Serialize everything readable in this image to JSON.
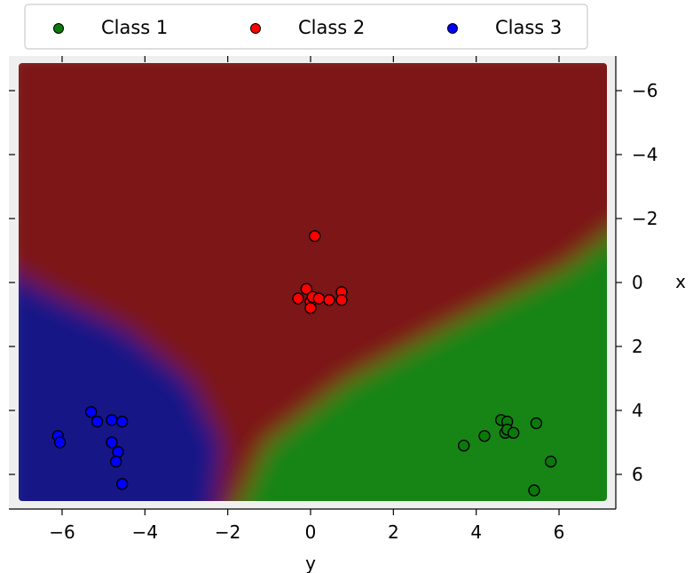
{
  "chart_data": {
    "type": "scatter",
    "title": "",
    "xlabel": "y",
    "ylabel": "x",
    "xlim": [
      -7.2,
      7.2
    ],
    "ylim": [
      7.2,
      -7.2
    ],
    "y_inverted": true,
    "x_ticks": [
      -6,
      -4,
      -2,
      0,
      2,
      4,
      6
    ],
    "y_ticks": [
      -6,
      -4,
      -2,
      0,
      2,
      4,
      6
    ],
    "x_tick_labels": [
      "−6",
      "−4",
      "−2",
      "0",
      "2",
      "4",
      "6"
    ],
    "y_tick_labels": [
      "−6",
      "−4",
      "−2",
      "0",
      "2",
      "4",
      "6"
    ],
    "y_axis_side": "right",
    "grid": false,
    "legend_placement": "top",
    "background": "decision regions for three classes",
    "series": [
      {
        "name": "Class 1",
        "color": "#0a7a0a",
        "region_color": "#158515",
        "points": [
          [
            3.7,
            5.1
          ],
          [
            4.2,
            4.8
          ],
          [
            4.6,
            4.3
          ],
          [
            4.75,
            4.35
          ],
          [
            4.7,
            4.7
          ],
          [
            4.75,
            4.6
          ],
          [
            4.9,
            4.7
          ],
          [
            5.45,
            4.4
          ],
          [
            5.8,
            5.6
          ],
          [
            5.4,
            6.5
          ]
        ]
      },
      {
        "name": "Class 2",
        "color": "#ff0000",
        "region_color": "#7d1515",
        "points": [
          [
            0.1,
            -1.45
          ],
          [
            -0.1,
            0.2
          ],
          [
            0.0,
            0.6
          ],
          [
            0.05,
            0.45
          ],
          [
            -0.3,
            0.5
          ],
          [
            0.0,
            0.8
          ],
          [
            0.2,
            0.5
          ],
          [
            0.45,
            0.55
          ],
          [
            0.75,
            0.3
          ],
          [
            0.75,
            0.55
          ]
        ]
      },
      {
        "name": "Class 3",
        "color": "#0000ff",
        "region_color": "#141487",
        "points": [
          [
            -6.1,
            4.8
          ],
          [
            -6.05,
            5.0
          ],
          [
            -5.3,
            4.05
          ],
          [
            -5.15,
            4.35
          ],
          [
            -4.8,
            4.3
          ],
          [
            -4.55,
            4.35
          ],
          [
            -4.8,
            5.0
          ],
          [
            -4.65,
            5.3
          ],
          [
            -4.7,
            5.6
          ],
          [
            -4.55,
            6.3
          ]
        ]
      }
    ]
  }
}
